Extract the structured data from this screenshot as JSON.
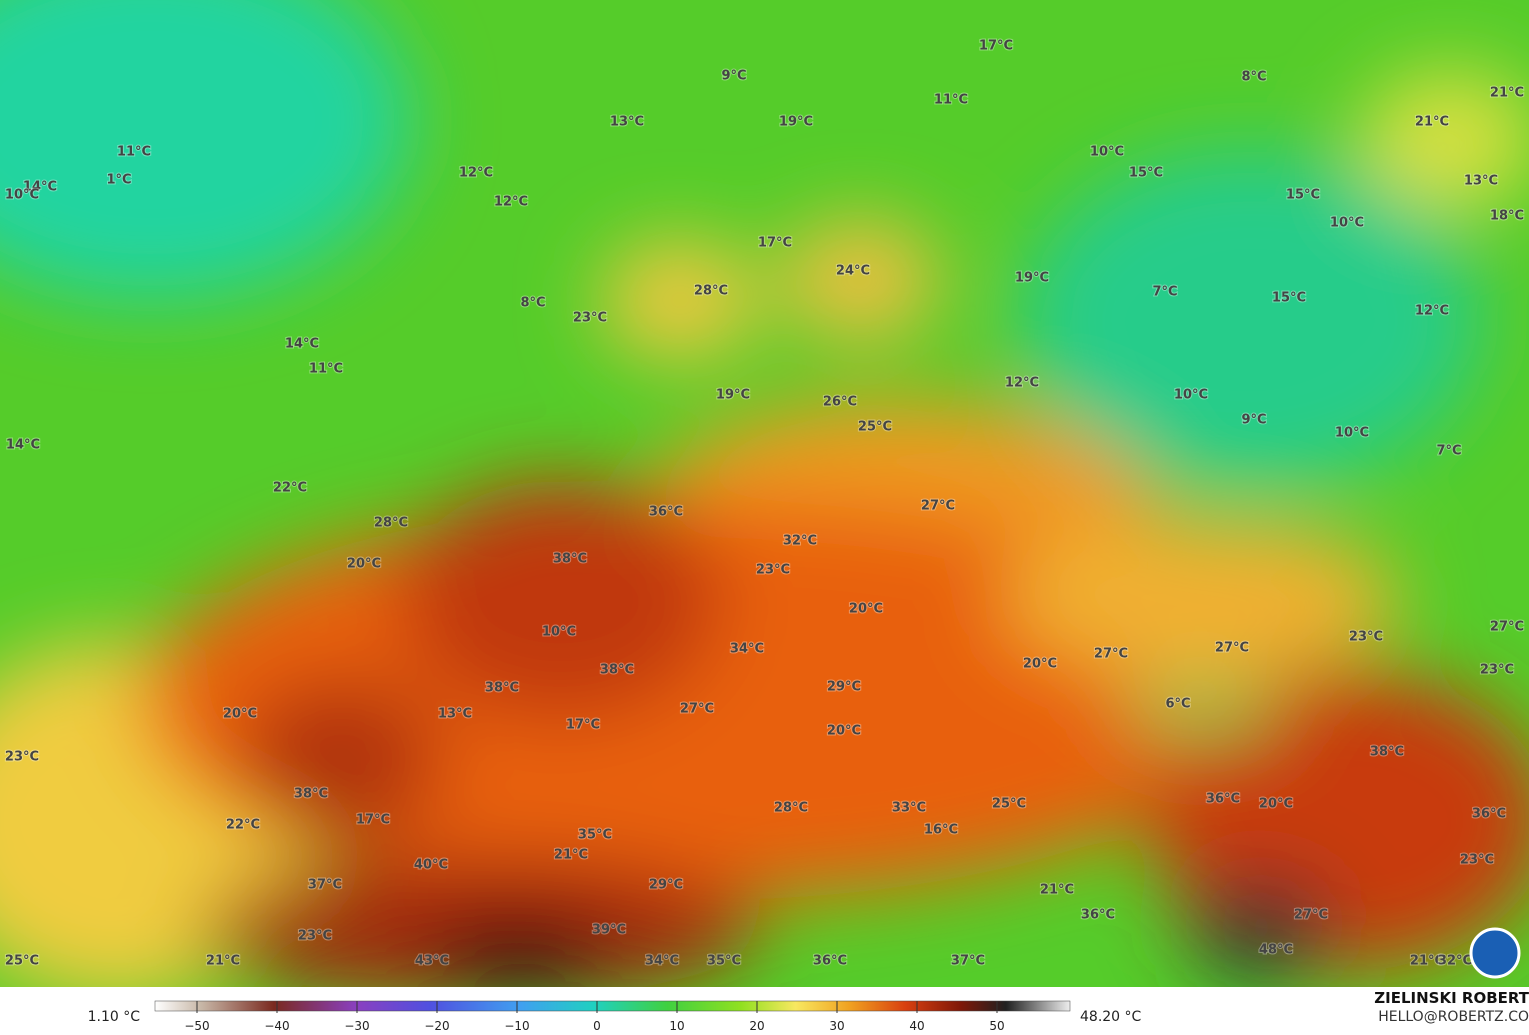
{
  "map": {
    "labels": [
      "17°C",
      "8°C",
      "21°C",
      "9°C",
      "11°C",
      "21°C",
      "13°C",
      "19°C",
      "11°C",
      "10°C",
      "15°C",
      "1°C",
      "12°C",
      "13°C",
      "14°C",
      "10°C",
      "15°C",
      "12°C",
      "18°C",
      "10°C",
      "17°C",
      "24°C",
      "19°C",
      "7°C",
      "15°C",
      "28°C",
      "8°C",
      "12°C",
      "23°C",
      "14°C",
      "11°C",
      "12°C",
      "19°C",
      "10°C",
      "26°C",
      "9°C",
      "25°C",
      "10°C",
      "14°C",
      "7°C",
      "22°C",
      "27°C",
      "36°C",
      "28°C",
      "32°C",
      "38°C",
      "20°C",
      "23°C",
      "20°C",
      "10°C",
      "27°C",
      "23°C",
      "27°C",
      "27°C",
      "34°C",
      "20°C",
      "38°C",
      "23°C",
      "38°C",
      "29°C",
      "6°C",
      "20°C",
      "13°C",
      "27°C",
      "17°C",
      "20°C",
      "38°C",
      "23°C",
      "36°C",
      "20°C",
      "25°C",
      "28°C",
      "33°C",
      "38°C",
      "36°C",
      "17°C",
      "22°C",
      "16°C",
      "35°C",
      "21°C",
      "23°C",
      "40°C",
      "37°C",
      "29°C",
      "21°C",
      "36°C",
      "27°C",
      "39°C",
      "23°C",
      "48°C",
      "25°C",
      "21°C",
      "43°C",
      "34°C",
      "35°C",
      "36°C",
      "37°C",
      "21°C",
      "32°C"
    ]
  },
  "colorbar": {
    "min_label": "1.10 °C",
    "max_label": "48.20 °C",
    "ticks": [
      {
        "value": -50,
        "label": "−50"
      },
      {
        "value": -40,
        "label": "−40"
      },
      {
        "value": -30,
        "label": "−30"
      },
      {
        "value": -20,
        "label": "−20"
      },
      {
        "value": -10,
        "label": "−10"
      },
      0,
      10,
      20,
      30,
      40,
      50
    ]
  },
  "credit": {
    "name": "ZIELINSKI ROBERT",
    "email": "HELLO@ROBERTZ.CO"
  }
}
